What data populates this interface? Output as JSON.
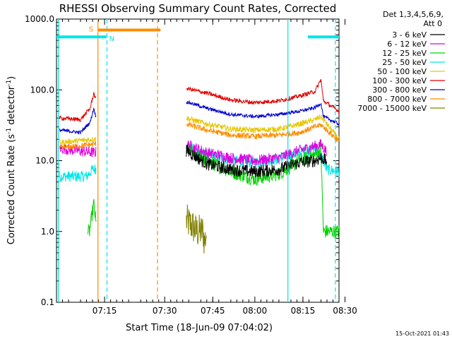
{
  "chart_data": {
    "type": "line",
    "title": "RHESSI Observing Summary Count Rates, Corrected",
    "xlabel": "Start Time (18-Jun-09 07:04:02)",
    "ylabel_main": "Corrected Count Rate (s",
    "ylabel_sup1": "-1",
    "ylabel_mid": " detector",
    "ylabel_sup2": "-1",
    "ylabel_end": ")",
    "y_scale": "log",
    "ylim": [
      0.1,
      1000
    ],
    "xlim_minutes": [
      -3,
      44
    ],
    "yticks": [
      {
        "value": 1000,
        "label": "1000.0"
      },
      {
        "value": 100,
        "label": "100.0"
      },
      {
        "value": 10,
        "label": "10.0"
      },
      {
        "value": 1,
        "label": "1.0"
      },
      {
        "value": 0.1,
        "label": "0.1"
      }
    ],
    "xticks": [
      {
        "minutes": 5,
        "label": "07:15"
      },
      {
        "minutes": 15,
        "label": "07:30"
      },
      {
        "minutes": 23,
        "label": "07:45"
      },
      {
        "minutes": 30,
        "label": "08:00"
      },
      {
        "minutes": 38,
        "label": "08:15"
      },
      {
        "minutes": 45,
        "label": "08:30"
      }
    ],
    "legend": {
      "position": "top-right",
      "header": [
        "Det 1,3,4,5,6,9,",
        "Att 0"
      ],
      "entries": [
        {
          "name": "3 - 6 keV",
          "color": "#000000"
        },
        {
          "name": "6 - 12 keV",
          "color": "#e000e0"
        },
        {
          "name": "12 - 25 keV",
          "color": "#00d000"
        },
        {
          "name": "25 - 50 keV",
          "color": "#00e6e6"
        },
        {
          "name": "50 - 100 keV",
          "color": "#e6c800"
        },
        {
          "name": "100 - 300 keV",
          "color": "#e00000"
        },
        {
          "name": "300 - 800 keV",
          "color": "#0000d0"
        },
        {
          "name": "800 - 7000 keV",
          "color": "#ff8c00"
        },
        {
          "name": "7000 - 15000 keV",
          "color": "#808000"
        }
      ]
    },
    "flags": [
      {
        "label": "S",
        "color": "#ff8c00",
        "x_start_min": 3.9,
        "x_end_min": 14.3,
        "y": 700
      },
      {
        "label": "N",
        "color": "#00e6e6",
        "x_start_min": -3,
        "x_end_min": 5.3,
        "y": 560
      },
      {
        "label": "",
        "color": "#00e6e6",
        "x_start_min": 38.8,
        "x_end_min": 44,
        "y": 560
      }
    ],
    "vlines": [
      {
        "x_min": -2.7,
        "color": "#00e6e6",
        "style": "solid"
      },
      {
        "x_min": 3.9,
        "color": "#ff8c00",
        "style": "solid"
      },
      {
        "x_min": 5.4,
        "color": "#00e6e6",
        "style": "dashed"
      },
      {
        "x_min": 13.8,
        "color": "#ff8c00",
        "style": "dashed"
      },
      {
        "x_min": 35.5,
        "color": "#00e6e6",
        "style": "solid"
      },
      {
        "x_min": 43.4,
        "color": "#00e6e6",
        "style": "dashed"
      }
    ],
    "segments_minutes": [
      [
        -2.5,
        3.6
      ],
      [
        18.6,
        44
      ]
    ],
    "series": [
      {
        "name": "3 - 6 keV",
        "color": "#000000",
        "x": [
          -2.5,
          3.0,
          18.6,
          22,
          26,
          30,
          34,
          37.5,
          40,
          41,
          44
        ],
        "y": [
          16,
          14,
          14,
          9,
          7.5,
          7,
          7.5,
          9.5,
          10,
          11,
          8
        ],
        "noise": 0.09,
        "visible": [
          [
            18.6,
            42
          ]
        ]
      },
      {
        "name": "6 - 12 keV",
        "color": "#e000e0",
        "x": [
          -2.5,
          3.0,
          18.6,
          22,
          26,
          30,
          34,
          37.5,
          40,
          41,
          44
        ],
        "y": [
          15,
          13,
          17,
          13,
          11,
          10,
          11,
          14,
          16,
          17,
          8
        ],
        "noise": 0.08,
        "visible": [
          [
            -2.5,
            3.6
          ],
          [
            18.6,
            42
          ]
        ]
      },
      {
        "name": "12 - 25 keV",
        "color": "#00d000",
        "x": [
          -2.5,
          0,
          2.5,
          3.2,
          3.6,
          18.6,
          22,
          26,
          30,
          34,
          37.5,
          40,
          41,
          41.4,
          44
        ],
        "y": [
          1,
          1,
          1,
          2.5,
          1.2,
          15,
          10,
          7,
          5.5,
          6.5,
          10,
          12,
          14,
          1,
          1
        ],
        "noise": 0.1,
        "visible": [
          [
            2.2,
            3.6
          ],
          [
            18.6,
            44
          ]
        ]
      },
      {
        "name": "25 - 50 keV",
        "color": "#00e6e6",
        "x": [
          -2.5,
          2.0,
          3.0,
          18.6,
          22,
          26,
          30,
          34,
          37.5,
          40,
          41,
          42,
          44
        ],
        "y": [
          6,
          6,
          7.5,
          16,
          12,
          10,
          9.5,
          10.5,
          13,
          15,
          12,
          7.5,
          7
        ],
        "noise": 0.08,
        "visible": [
          [
            -2.5,
            3.6
          ],
          [
            18.6,
            44
          ]
        ]
      },
      {
        "name": "50 - 100 keV",
        "color": "#e6c800",
        "x": [
          -2.5,
          3.0,
          18.6,
          22,
          26,
          30,
          34,
          37.5,
          40,
          41,
          44
        ],
        "y": [
          18,
          20,
          40,
          33,
          28,
          27,
          28,
          33,
          38,
          42,
          20
        ],
        "noise": 0.04,
        "visible": [
          [
            -2.5,
            3.6
          ],
          [
            18.6,
            44
          ]
        ]
      },
      {
        "name": "100 - 300 keV",
        "color": "#e00000",
        "x": [
          -2.5,
          1,
          2.6,
          3.2,
          3.6,
          18.6,
          22,
          26,
          30,
          34,
          37.5,
          40,
          41,
          41.4,
          44
        ],
        "y": [
          40,
          38,
          55,
          90,
          70,
          105,
          90,
          72,
          66,
          70,
          82,
          95,
          140,
          70,
          50
        ],
        "noise": 0.03,
        "visible": [
          [
            -2.5,
            3.6
          ],
          [
            18.6,
            44
          ]
        ]
      },
      {
        "name": "300 - 800 keV",
        "color": "#0000d0",
        "x": [
          -2.5,
          1,
          2.6,
          3.2,
          3.6,
          18.6,
          22,
          26,
          30,
          34,
          37.5,
          40,
          41,
          41.4,
          44
        ],
        "y": [
          27,
          25,
          35,
          55,
          40,
          68,
          55,
          45,
          42,
          45,
          50,
          56,
          65,
          42,
          33
        ],
        "noise": 0.025,
        "visible": [
          [
            -2.5,
            3.6
          ],
          [
            18.6,
            44
          ]
        ]
      },
      {
        "name": "800 - 7000 keV",
        "color": "#ff8c00",
        "x": [
          -2.5,
          3.0,
          18.6,
          22,
          26,
          30,
          34,
          37.5,
          40,
          41,
          44
        ],
        "y": [
          15,
          17,
          33,
          27,
          23,
          22,
          23,
          25,
          30,
          32,
          19
        ],
        "noise": 0.04,
        "visible": [
          [
            -2.5,
            3.6
          ],
          [
            18.6,
            44
          ]
        ]
      },
      {
        "name": "7000 - 15000 keV",
        "color": "#808000",
        "x": [
          18.6,
          19.6,
          20.3,
          21.4,
          21.6,
          22
        ],
        "y": [
          1.4,
          1.2,
          1.0,
          1.0,
          0.7,
          1.0
        ],
        "noise": 0.25,
        "visible": [
          [
            18.6,
            22
          ]
        ]
      }
    ]
  },
  "footer": {
    "generated": "15-Oct-2021 01:43"
  }
}
